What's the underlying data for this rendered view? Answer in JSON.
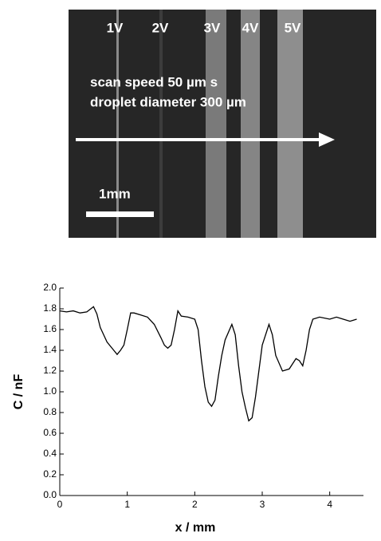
{
  "image": {
    "labels": [
      "1V",
      "2V",
      "3V",
      "4V",
      "5V"
    ],
    "caption_lines": [
      "scan speed 50 µm s",
      "droplet diameter 300 µm"
    ],
    "scale_bar": "1mm"
  },
  "chart_data": {
    "type": "line",
    "x_label": "x / mm",
    "y_label": "C / nF",
    "xlim": [
      0,
      4.5
    ],
    "xticks": [
      0,
      1,
      2,
      3,
      4
    ],
    "ylim": [
      0,
      2.0
    ],
    "yticks": [
      {
        "value": 0,
        "label": "0.0"
      },
      {
        "value": 0.2,
        "label": "0.2"
      },
      {
        "value": 0.4,
        "label": "0.4"
      },
      {
        "value": 0.6,
        "label": "0.6"
      },
      {
        "value": 0.8,
        "label": "0.8"
      },
      {
        "value": 1.0,
        "label": "1.0"
      },
      {
        "value": 1.2,
        "label": "1.2"
      },
      {
        "value": 1.4,
        "label": "1.4"
      },
      {
        "value": 1.6,
        "label": "1.6"
      },
      {
        "value": 1.8,
        "label": "1.8"
      },
      {
        "value": 2.0,
        "label": "2.0"
      }
    ],
    "x": [
      0,
      0.1,
      0.2,
      0.3,
      0.4,
      0.5,
      0.55,
      0.6,
      0.7,
      0.8,
      0.85,
      0.9,
      0.95,
      1.0,
      1.05,
      1.1,
      1.2,
      1.3,
      1.4,
      1.5,
      1.55,
      1.6,
      1.65,
      1.7,
      1.75,
      1.8,
      1.9,
      2.0,
      2.05,
      2.1,
      2.15,
      2.2,
      2.25,
      2.3,
      2.35,
      2.4,
      2.45,
      2.55,
      2.6,
      2.65,
      2.7,
      2.75,
      2.8,
      2.85,
      2.9,
      2.95,
      3.0,
      3.1,
      3.15,
      3.2,
      3.3,
      3.4,
      3.5,
      3.55,
      3.6,
      3.65,
      3.7,
      3.75,
      3.85,
      4.0,
      4.1,
      4.2,
      4.3,
      4.4
    ],
    "series": [
      {
        "color": "#000000",
        "values": [
          1.78,
          1.77,
          1.78,
          1.76,
          1.77,
          1.82,
          1.75,
          1.62,
          1.48,
          1.4,
          1.36,
          1.4,
          1.45,
          1.6,
          1.76,
          1.76,
          1.74,
          1.72,
          1.65,
          1.52,
          1.45,
          1.42,
          1.45,
          1.6,
          1.78,
          1.73,
          1.72,
          1.7,
          1.6,
          1.3,
          1.05,
          0.9,
          0.86,
          0.92,
          1.15,
          1.35,
          1.5,
          1.65,
          1.55,
          1.25,
          1.0,
          0.85,
          0.72,
          0.75,
          0.95,
          1.2,
          1.45,
          1.65,
          1.55,
          1.35,
          1.2,
          1.22,
          1.32,
          1.3,
          1.25,
          1.4,
          1.6,
          1.7,
          1.72,
          1.7,
          1.72,
          1.7,
          1.68,
          1.7
        ]
      }
    ]
  }
}
